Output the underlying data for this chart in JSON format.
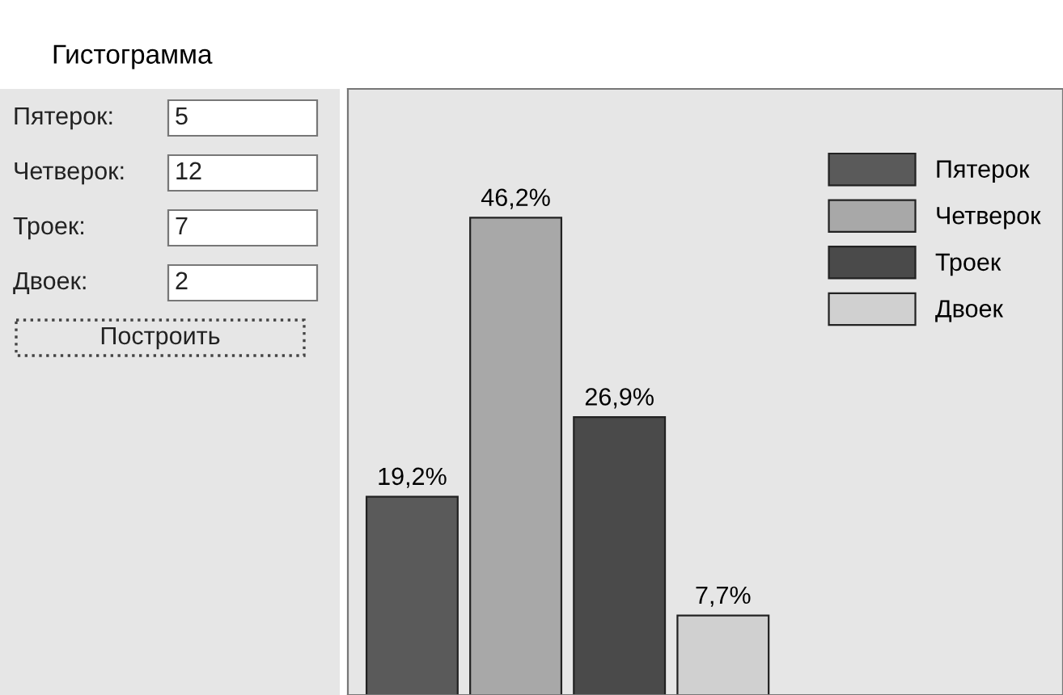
{
  "chart_data": [
    {
      "type": "other",
      "title": "Гистограмма",
      "annotations": [
        "Пятерок:",
        "5",
        "Четверок:",
        "12",
        "Троек:",
        "7",
        "Двоек:",
        "2",
        "Построить"
      ]
    },
    {
      "type": "bar",
      "stacked": true,
      "categories": [
        null,
        null,
        null,
        null
      ],
      "series": [
        {
          "name": "Пятерок",
          "color": "#5a5a5a",
          "values": [
            19.2,
            null,
            null,
            null
          ],
          "value_labels": [
            "19,2%",
            null,
            null,
            null
          ]
        },
        {
          "name": "Четверок",
          "color": "#a8a8a8",
          "values": [
            null,
            46.2,
            null,
            null
          ],
          "value_labels": [
            null,
            "46,2%",
            null,
            null
          ]
        },
        {
          "name": "Троек",
          "color": "#4a4a4a",
          "values": [
            null,
            null,
            26.9,
            null
          ],
          "value_labels": [
            null,
            null,
            "26,9%",
            null
          ]
        },
        {
          "name": "Двоек",
          "color": "#d0d0d0",
          "values": [
            null,
            null,
            null,
            7.7
          ],
          "value_labels": [
            null,
            null,
            null,
            "7,7%"
          ]
        }
      ],
      "legend": "top right"
    }
  ]
}
